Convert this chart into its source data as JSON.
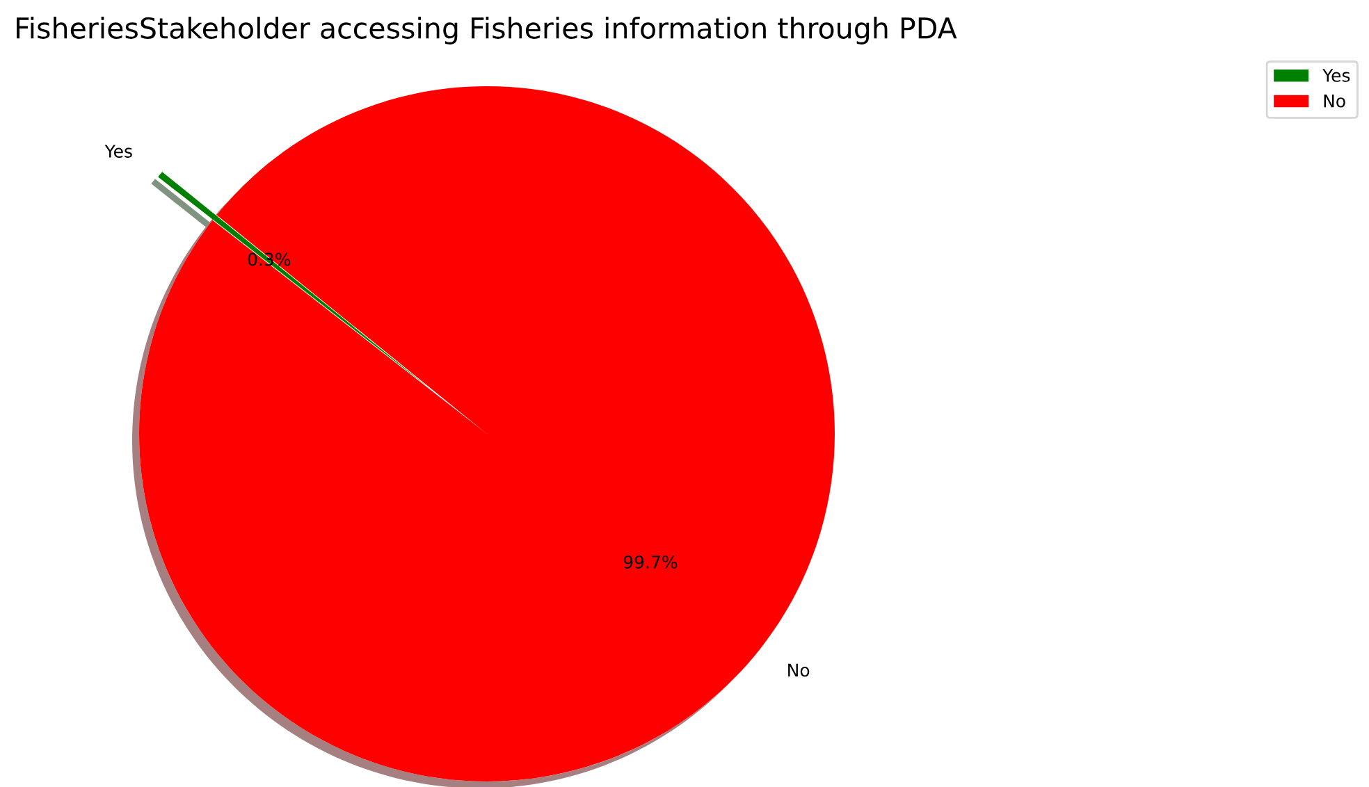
{
  "chart_data": {
    "type": "pie",
    "title": "FisheriesStakeholder accessing Fisheries information through PDA",
    "categories": [
      "Yes",
      "No"
    ],
    "values": [
      0.3,
      99.7
    ],
    "colors": [
      "#008000",
      "#ff0000"
    ],
    "value_labels": [
      "0.3%",
      "99.7%"
    ],
    "legend": "top right"
  }
}
